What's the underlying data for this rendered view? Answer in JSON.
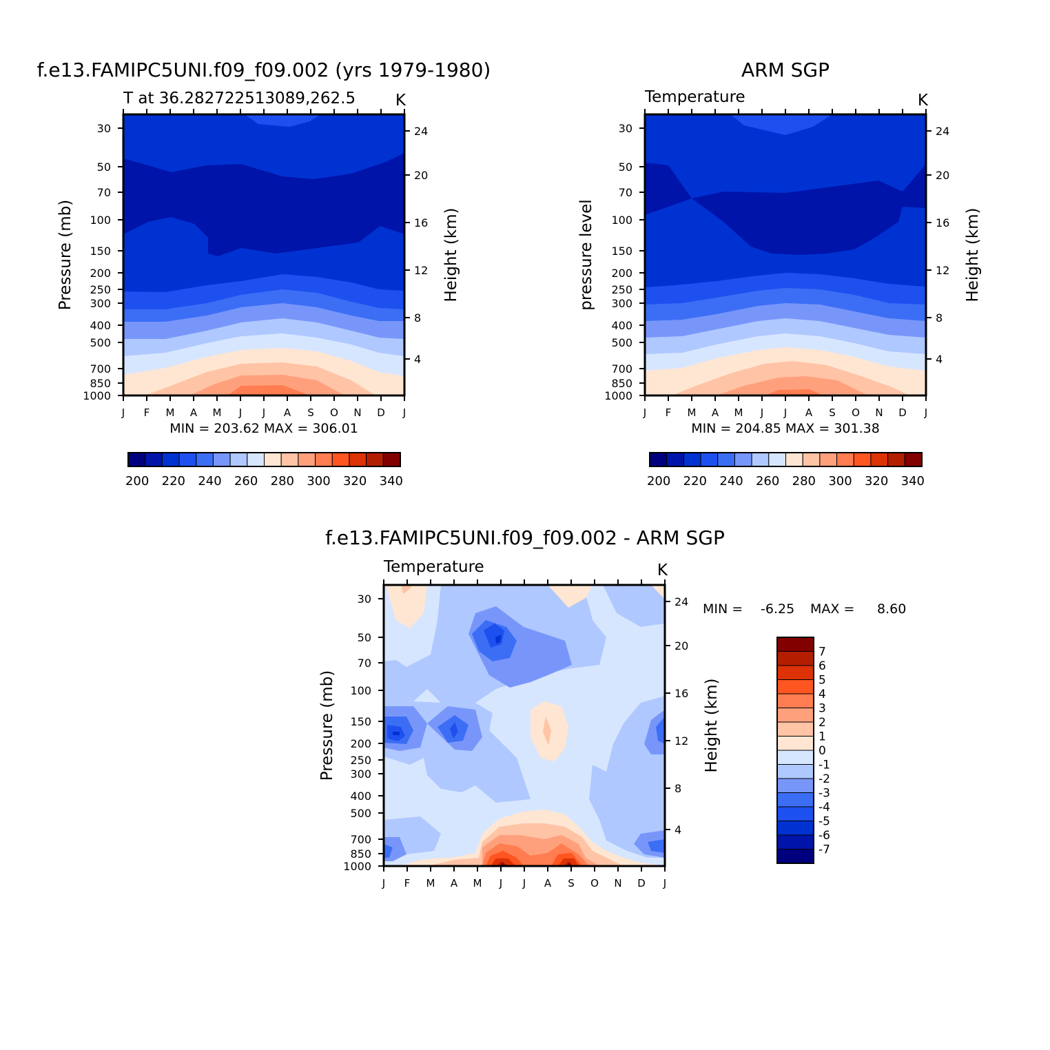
{
  "chart_data": [
    {
      "type": "heatmap",
      "title": "f.e13.FAMIPC5UNI.f09_f09.002 (yrs 1979-1980)",
      "left_label": "T at 36.282722513089,262.5",
      "units": "K",
      "ylabel": "Pressure (mb)",
      "ylabel_right": "Height (km)",
      "months": [
        "J",
        "F",
        "M",
        "A",
        "M",
        "J",
        "J",
        "A",
        "S",
        "O",
        "N",
        "D",
        "J"
      ],
      "pressure_ticks": [
        "30",
        "50",
        "70",
        "100",
        "150",
        "200",
        "250",
        "300",
        "400",
        "500",
        "700",
        "850",
        "1000"
      ],
      "height_ticks": [
        "24",
        "20",
        "16",
        "12",
        "8",
        "4"
      ],
      "stats_text": "MIN = 203.62 MAX = 306.01",
      "min": 203.62,
      "max": 306.01,
      "colorbar_labels": [
        "200",
        "220",
        "240",
        "260",
        "280",
        "300",
        "320",
        "340"
      ],
      "colorbar_levels": [
        195,
        200,
        205,
        210,
        215,
        220,
        225,
        230,
        235,
        240,
        245,
        250,
        255,
        260,
        265,
        270,
        275,
        280,
        285,
        290,
        295,
        300,
        305,
        310,
        315,
        320,
        325,
        330,
        335,
        340,
        345
      ],
      "colorbar_values": [
        200,
        220,
        240,
        260,
        280,
        300,
        320,
        340
      ],
      "contour_levels": [
        200,
        220,
        240,
        260,
        280,
        300,
        320,
        340
      ],
      "colorbar_fill_colors": [
        "#00007f",
        "#0014aa",
        "#0032d2",
        "#1e50f0",
        "#3c6ef5",
        "#7896fa",
        "#afc8ff",
        "#d7e6ff",
        "#ffe6d2",
        "#ffc3a5",
        "#ffa07d",
        "#ff7d50",
        "#ff5520",
        "#dc3205",
        "#b41e00",
        "#820000"
      ]
    },
    {
      "type": "heatmap",
      "title": "ARM SGP",
      "left_label": "Temperature",
      "units": "K",
      "ylabel": "pressure level",
      "ylabel_right": "Height (km)",
      "months": [
        "J",
        "F",
        "M",
        "A",
        "M",
        "J",
        "J",
        "A",
        "S",
        "O",
        "N",
        "D",
        "J"
      ],
      "pressure_ticks": [
        "30",
        "50",
        "70",
        "100",
        "150",
        "200",
        "250",
        "300",
        "400",
        "500",
        "700",
        "850",
        "1000"
      ],
      "height_ticks": [
        "24",
        "20",
        "16",
        "12",
        "8",
        "4"
      ],
      "stats_text": "MIN = 204.85 MAX = 301.38",
      "min": 204.85,
      "max": 301.38,
      "colorbar_labels": [
        "200",
        "220",
        "240",
        "260",
        "280",
        "300",
        "320",
        "340"
      ],
      "colorbar_values": [
        200,
        220,
        240,
        260,
        280,
        300,
        320,
        340
      ],
      "contour_levels": [
        200,
        220,
        240,
        260,
        280,
        300,
        320,
        340
      ]
    },
    {
      "type": "heatmap",
      "title": "f.e13.FAMIPC5UNI.f09_f09.002 - ARM SGP",
      "left_label": "Temperature",
      "units": "K",
      "ylabel": "Pressure (mb)",
      "ylabel_right": "Height (km)",
      "months": [
        "J",
        "F",
        "M",
        "A",
        "M",
        "J",
        "J",
        "A",
        "S",
        "O",
        "N",
        "D",
        "J"
      ],
      "pressure_ticks": [
        "30",
        "50",
        "70",
        "100",
        "150",
        "200",
        "250",
        "300",
        "400",
        "500",
        "700",
        "850",
        "1000"
      ],
      "height_ticks": [
        "24",
        "20",
        "16",
        "12",
        "8",
        "4"
      ],
      "stats_min_label": "MIN =",
      "stats_min_value": "-6.25",
      "stats_max_label": "MAX =",
      "stats_max_value": "8.60",
      "min": -6.25,
      "max": 8.6,
      "colorbar_labels": [
        "7",
        "6",
        "5",
        "4",
        "3",
        "2",
        "1",
        "0",
        "-1",
        "-2",
        "-3",
        "-4",
        "-5",
        "-6",
        "-7"
      ],
      "contour_levels": [
        7,
        6,
        5,
        4,
        3,
        2,
        1,
        0,
        -1,
        -2,
        -3,
        -4,
        -5,
        -6,
        -7
      ],
      "colorbar_fill_colors": [
        "#820000",
        "#b41e00",
        "#dc3205",
        "#ff5520",
        "#ff7d50",
        "#ffa07d",
        "#ffc3a5",
        "#ffe6d2",
        "#d7e6ff",
        "#afc8ff",
        "#7896fa",
        "#3c6ef5",
        "#1e50f0",
        "#0032d2",
        "#0014aa",
        "#00007f"
      ]
    }
  ]
}
